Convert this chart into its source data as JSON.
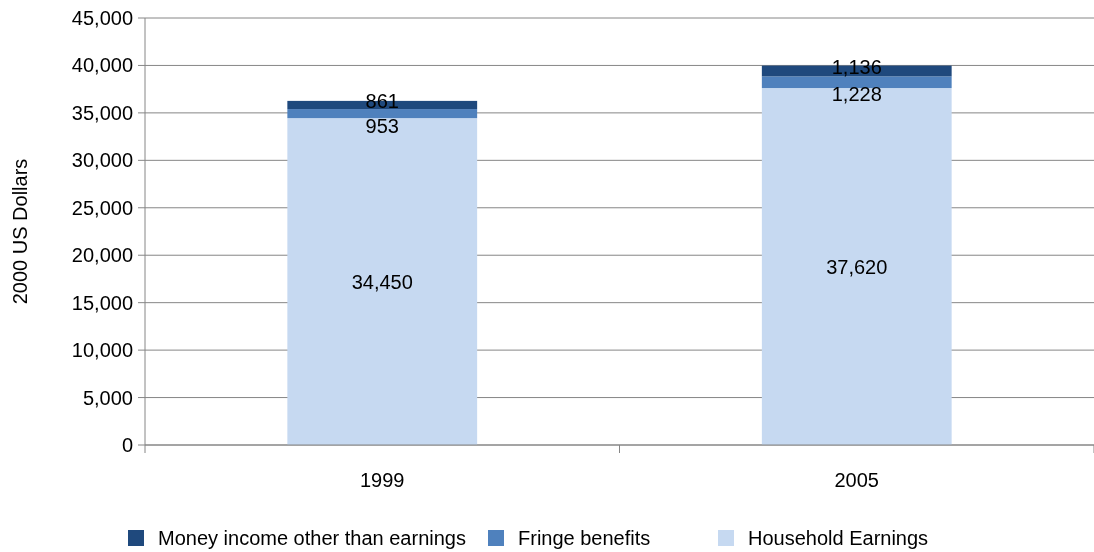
{
  "chart_data": {
    "type": "bar",
    "stacked": true,
    "ylabel": "2000 US Dollars",
    "categories": [
      "1999",
      "2005"
    ],
    "series": [
      {
        "name": "Household Earnings",
        "color": "#c6d9f1",
        "values": [
          34450,
          37620
        ],
        "value_labels": [
          "34,450",
          "37,620"
        ]
      },
      {
        "name": "Fringe benefits",
        "color": "#4f81bd",
        "values": [
          953,
          1228
        ],
        "value_labels": [
          "953",
          "1,228"
        ]
      },
      {
        "name": "Money income other than earnings",
        "color": "#1f497d",
        "values": [
          861,
          1136
        ],
        "value_labels": [
          "861",
          "1,136"
        ]
      }
    ],
    "ylim": [
      0,
      45000
    ],
    "yticks": [
      {
        "value": 0,
        "label": "0"
      },
      {
        "value": 5000,
        "label": "5,000"
      },
      {
        "value": 10000,
        "label": "10,000"
      },
      {
        "value": 15000,
        "label": "15,000"
      },
      {
        "value": 20000,
        "label": "20,000"
      },
      {
        "value": 25000,
        "label": "25,000"
      },
      {
        "value": 30000,
        "label": "30,000"
      },
      {
        "value": 35000,
        "label": "35,000"
      },
      {
        "value": 40000,
        "label": "40,000"
      },
      {
        "value": 45000,
        "label": "45,000"
      }
    ],
    "grid": "y",
    "legend": "bottom"
  }
}
